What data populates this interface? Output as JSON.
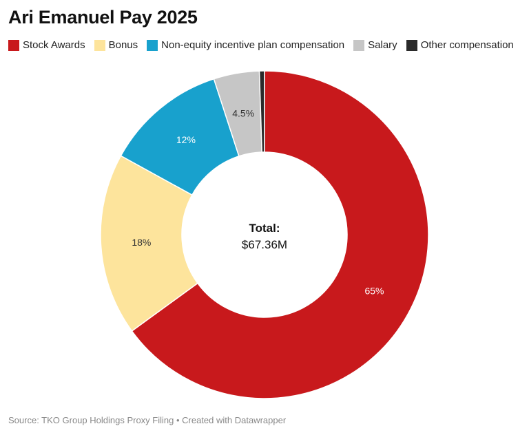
{
  "title": "Ari Emanuel Pay 2025",
  "footer": "Source: TKO Group Holdings Proxy Filing • Created with Datawrapper",
  "chart_data": {
    "type": "pie",
    "title": "Ari Emanuel Pay 2025",
    "legend_position": "top",
    "center_label": {
      "heading": "Total:",
      "value": "$67.36M"
    },
    "slices": [
      {
        "name": "Stock Awards",
        "value": 65.0,
        "label": "65%",
        "color": "#c8191c",
        "label_color": "#ffffff"
      },
      {
        "name": "Bonus",
        "value": 18.0,
        "label": "18%",
        "color": "#fde49c",
        "label_color": "#333333"
      },
      {
        "name": "Non-equity incentive plan compensation",
        "value": 12.0,
        "label": "12%",
        "color": "#18a1cd",
        "label_color": "#ffffff"
      },
      {
        "name": "Salary",
        "value": 4.5,
        "label": "4.5%",
        "color": "#c6c6c6",
        "label_color": "#333333"
      },
      {
        "name": "Other compensation",
        "value": 0.5,
        "label": "",
        "color": "#2a2a2a",
        "label_color": "#ffffff"
      }
    ]
  }
}
